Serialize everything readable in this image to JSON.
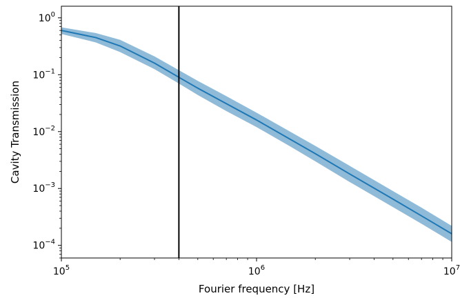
{
  "chart_data": {
    "type": "line",
    "title": "",
    "xlabel": "Fourier frequency [Hz]",
    "ylabel": "Cavity Transmission",
    "xscale": "log",
    "yscale": "log",
    "xlim": [
      100000,
      10000000
    ],
    "ylim": [
      6e-05,
      1.6
    ],
    "grid": false,
    "legend": "none",
    "x_ticks": [
      {
        "value": 100000,
        "base": "10",
        "exp": "5"
      },
      {
        "value": 1000000,
        "base": "10",
        "exp": "6"
      },
      {
        "value": 10000000,
        "base": "10",
        "exp": "7"
      }
    ],
    "y_ticks": [
      {
        "value": 1,
        "base": "10",
        "exp": "0"
      },
      {
        "value": 0.1,
        "base": "10",
        "exp": "−1"
      },
      {
        "value": 0.01,
        "base": "10",
        "exp": "−2"
      },
      {
        "value": 0.001,
        "base": "10",
        "exp": "−3"
      },
      {
        "value": 0.0001,
        "base": "10",
        "exp": "−4"
      }
    ],
    "series": [
      {
        "style": "line",
        "color": "#1f77b4",
        "x": [
          100000,
          150000,
          200000,
          300000,
          400000,
          500000,
          700000,
          1000000,
          1500000,
          2000000,
          3000000,
          5000000,
          7000000,
          10000000
        ],
        "y": [
          0.6,
          0.45,
          0.32,
          0.16,
          0.09,
          0.058,
          0.031,
          0.016,
          0.0072,
          0.0041,
          0.0018,
          0.00065,
          0.00033,
          0.00016
        ]
      }
    ],
    "band": {
      "color": "#1f77b4",
      "opacity": 0.5,
      "x": [
        100000,
        150000,
        200000,
        300000,
        400000,
        500000,
        700000,
        1000000,
        1500000,
        2000000,
        3000000,
        5000000,
        7000000,
        10000000
      ],
      "lower": [
        0.52,
        0.37,
        0.25,
        0.125,
        0.07,
        0.044,
        0.023,
        0.012,
        0.0054,
        0.003,
        0.0013,
        0.00047,
        0.00024,
        0.000115
      ],
      "upper": [
        0.68,
        0.54,
        0.41,
        0.21,
        0.12,
        0.078,
        0.042,
        0.0215,
        0.0098,
        0.0056,
        0.0025,
        0.0009,
        0.00046,
        0.00022
      ]
    },
    "vlines": [
      {
        "x": 400000,
        "color": "#000000"
      }
    ]
  }
}
